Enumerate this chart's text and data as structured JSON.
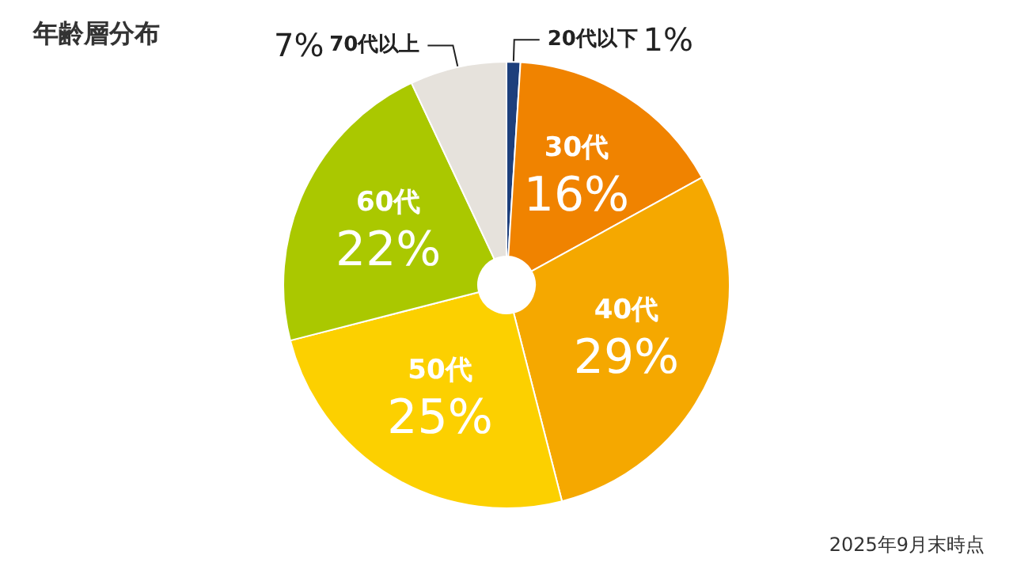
{
  "chart_data": {
    "type": "donut",
    "title": "年齢層分布",
    "annotations": [
      "2025年9月末時点"
    ],
    "categories": [
      "20代以下",
      "30代",
      "40代",
      "50代",
      "60代",
      "70代以上"
    ],
    "values": [
      1,
      16,
      29,
      25,
      22,
      7
    ],
    "value_labels": [
      "1%",
      "16%",
      "29%",
      "25%",
      "22%",
      "7%"
    ],
    "colors": [
      "#1d3f7c",
      "#f08300",
      "#f5a800",
      "#fcd000",
      "#aac800",
      "#e6e2dc"
    ]
  }
}
